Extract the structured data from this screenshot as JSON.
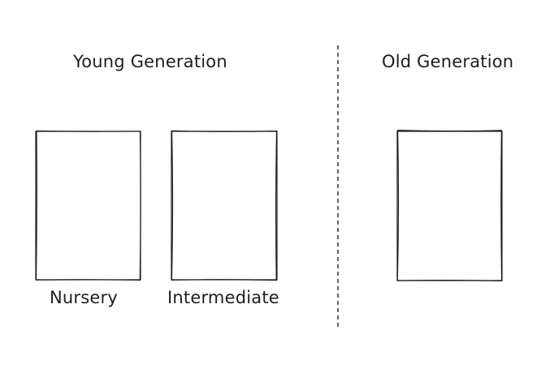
{
  "young_generation": {
    "heading": "Young Generation",
    "spaces": [
      {
        "label": "Nursery"
      },
      {
        "label": "Intermediate"
      }
    ]
  },
  "old_generation": {
    "heading": "Old Generation"
  },
  "colors": {
    "stroke": "#1e1e1e",
    "background": "#ffffff"
  }
}
